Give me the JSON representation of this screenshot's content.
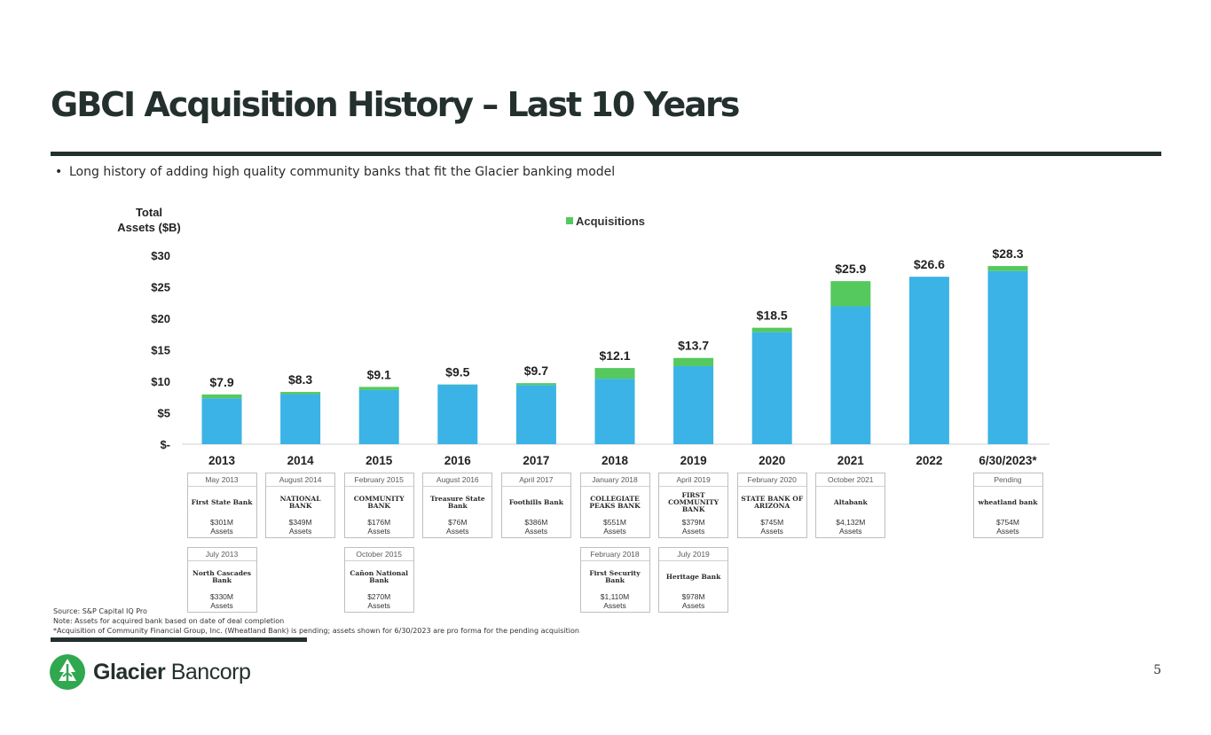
{
  "page": {
    "title": "GBCI Acquisition History – Last 10 Years",
    "bullet": "Long history of adding high quality community banks that fit the Glacier banking model",
    "page_number": "5",
    "notes": [
      "Source: S&P Capital IQ Pro",
      "Note: Assets for acquired bank based on date of deal completion",
      "*Acquisition of Community Financial Group, Inc. (Wheatland Bank) is pending; assets shown for 6/30/2023 are pro forma for the pending acquisition"
    ],
    "brand": {
      "name_bold": "Glacier",
      "name_light": " Bancorp",
      "icon": "glacier-mountain-logo-icon"
    }
  },
  "chart_data": {
    "type": "bar",
    "stacked": true,
    "ylabel": "Total Assets ($B)",
    "ylim": [
      0,
      30
    ],
    "y_ticks": [
      0,
      5,
      10,
      15,
      20,
      25,
      30
    ],
    "y_tick_labels": [
      "$-",
      "$5",
      "$10",
      "$15",
      "$20",
      "$25",
      "$30"
    ],
    "categories": [
      "2013",
      "2014",
      "2015",
      "2016",
      "2017",
      "2018",
      "2019",
      "2020",
      "2021",
      "2022",
      "6/30/2023*"
    ],
    "legend": {
      "position": "top-center",
      "entries": [
        "Acquisitions"
      ]
    },
    "series": [
      {
        "values": [
          7.3,
          7.95,
          8.6,
          9.45,
          9.4,
          10.4,
          12.4,
          17.8,
          21.9,
          26.6,
          27.5
        ],
        "color": "#3bb3e6"
      },
      {
        "name": "Acquisitions",
        "values": [
          0.6,
          0.35,
          0.5,
          0.05,
          0.3,
          1.7,
          1.3,
          0.7,
          4.0,
          0,
          0.8
        ],
        "color": "#55c95e"
      }
    ],
    "totals": [
      7.9,
      8.3,
      9.1,
      9.5,
      9.7,
      12.1,
      13.7,
      18.5,
      25.9,
      26.6,
      28.3
    ],
    "total_labels": [
      "$7.9",
      "$8.3",
      "$9.1",
      "$9.5",
      "$9.7",
      "$12.1",
      "$13.7",
      "$18.5",
      "$25.9",
      "$26.6",
      "$28.3"
    ],
    "grid": false
  },
  "acquisitions": [
    {
      "col": 0,
      "row": 0,
      "date": "May 2013",
      "bank": "First State Bank",
      "assets": "$301M",
      "assets_label": "Assets"
    },
    {
      "col": 1,
      "row": 0,
      "date": "August 2014",
      "bank": "NATIONAL BANK",
      "assets": "$349M",
      "assets_label": "Assets"
    },
    {
      "col": 2,
      "row": 0,
      "date": "February 2015",
      "bank": "COMMUNITY BANK",
      "assets": "$176M",
      "assets_label": "Assets"
    },
    {
      "col": 3,
      "row": 0,
      "date": "August 2016",
      "bank": "Treasure State Bank",
      "assets": "$76M",
      "assets_label": "Assets"
    },
    {
      "col": 4,
      "row": 0,
      "date": "April 2017",
      "bank": "Foothills Bank",
      "assets": "$386M",
      "assets_label": "Assets"
    },
    {
      "col": 5,
      "row": 0,
      "date": "January 2018",
      "bank": "COLLEGIATE PEAKS BANK",
      "assets": "$551M",
      "assets_label": "Assets"
    },
    {
      "col": 6,
      "row": 0,
      "date": "April 2019",
      "bank": "FIRST COMMUNITY BANK",
      "assets": "$379M",
      "assets_label": "Assets"
    },
    {
      "col": 7,
      "row": 0,
      "date": "February 2020",
      "bank": "STATE BANK OF ARIZONA",
      "assets": "$745M",
      "assets_label": "Assets"
    },
    {
      "col": 8,
      "row": 0,
      "date": "October 2021",
      "bank": "Altabank",
      "assets": "$4,132M",
      "assets_label": "Assets"
    },
    {
      "col": 10,
      "row": 0,
      "date": "Pending",
      "bank": "wheatland bank",
      "assets": "$754M",
      "assets_label": "Assets"
    },
    {
      "col": 0,
      "row": 1,
      "date": "July 2013",
      "bank": "North Cascades Bank",
      "assets": "$330M",
      "assets_label": "Assets"
    },
    {
      "col": 2,
      "row": 1,
      "date": "October 2015",
      "bank": "Cañon National Bank",
      "assets": "$270M",
      "assets_label": "Assets"
    },
    {
      "col": 5,
      "row": 1,
      "date": "February 2018",
      "bank": "First Security Bank",
      "assets": "$1,110M",
      "assets_label": "Assets"
    },
    {
      "col": 6,
      "row": 1,
      "date": "July 2019",
      "bank": "Heritage Bank",
      "assets": "$978M",
      "assets_label": "Assets"
    }
  ]
}
